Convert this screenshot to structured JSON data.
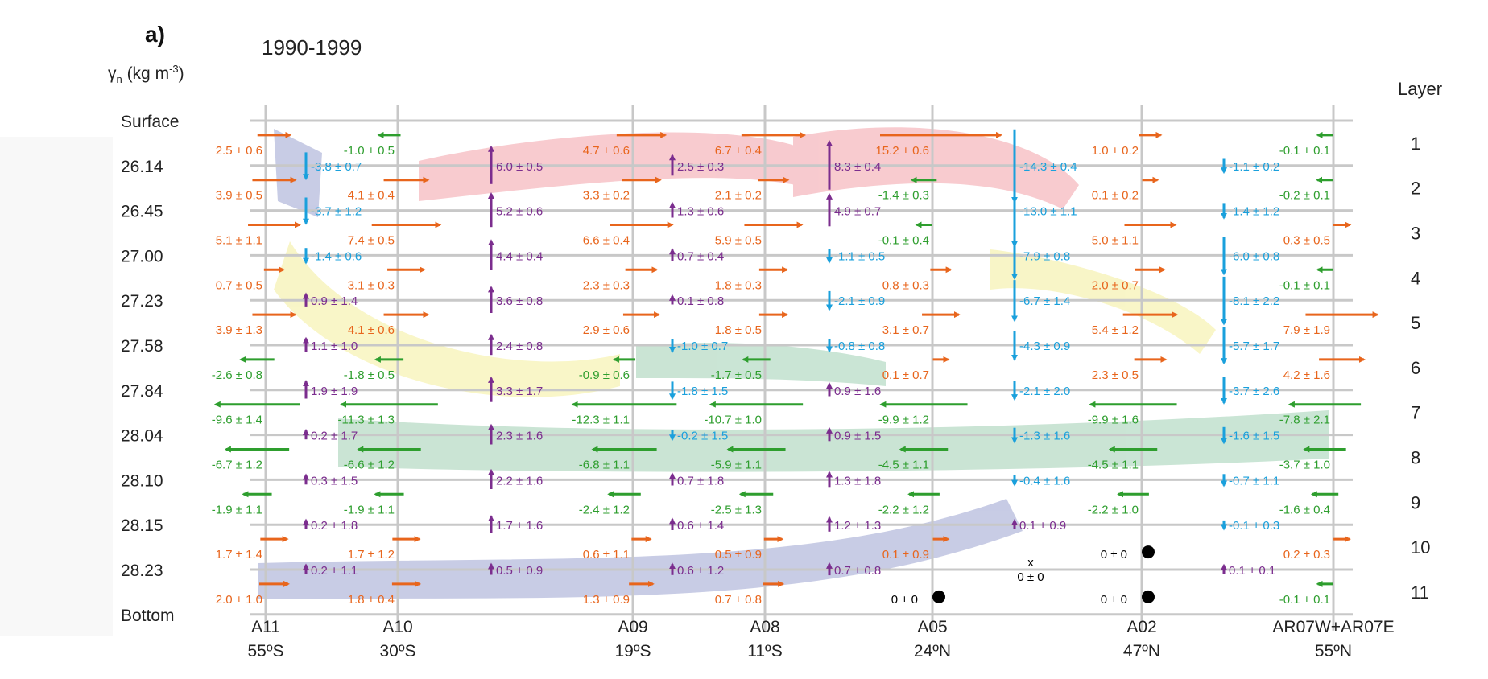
{
  "panel_label": "a)",
  "period": "1990-1999",
  "y_axis_label": "γ",
  "y_axis_label_sub": "n",
  "y_axis_unit": " (kg m",
  "y_axis_unit_sup": "-3",
  "y_axis_unit_close": ")",
  "layer_header": "Layer",
  "density_levels": [
    "Surface",
    "26.14",
    "26.45",
    "27.00",
    "27.23",
    "27.58",
    "27.84",
    "28.04",
    "28.10",
    "28.15",
    "28.23",
    "Bottom"
  ],
  "layers": [
    "1",
    "2",
    "3",
    "4",
    "5",
    "6",
    "7",
    "8",
    "9",
    "10",
    "11"
  ],
  "sections": [
    {
      "name": "A11",
      "lat": "55ºS"
    },
    {
      "name": "A10",
      "lat": "30ºS"
    },
    {
      "name": "A09",
      "lat": "19ºS"
    },
    {
      "name": "A08",
      "lat": "11ºS"
    },
    {
      "name": "A05",
      "lat": "24ºN"
    },
    {
      "name": "A02",
      "lat": "47ºN"
    },
    {
      "name": "AR07W+AR07E",
      "lat": "55ºN"
    }
  ],
  "colors": {
    "northward": "#e8651c",
    "southward": "#2e9e2e",
    "upwelling": "#7b2d8e",
    "downwelling": "#1aa0dc",
    "zero": "#000000",
    "gridline": "#c8c8c8",
    "band_red": "#f2a0a8",
    "band_yellow": "#f4ee9a",
    "band_green": "#9fcfb2",
    "band_blue": "#9aa2d0"
  },
  "horizontal_transports": [
    {
      "sec": 0,
      "layer": 1,
      "text": "2.5 ± 0.6",
      "dir": "north"
    },
    {
      "sec": 0,
      "layer": 2,
      "text": "3.9 ± 0.5",
      "dir": "north"
    },
    {
      "sec": 0,
      "layer": 3,
      "text": "5.1 ± 1.1",
      "dir": "north"
    },
    {
      "sec": 0,
      "layer": 4,
      "text": "0.7 ± 0.5",
      "dir": "north"
    },
    {
      "sec": 0,
      "layer": 5,
      "text": "3.9 ± 1.3",
      "dir": "north"
    },
    {
      "sec": 0,
      "layer": 6,
      "text": "-2.6 ± 0.8",
      "dir": "south"
    },
    {
      "sec": 0,
      "layer": 7,
      "text": "-9.6 ± 1.4",
      "dir": "south"
    },
    {
      "sec": 0,
      "layer": 8,
      "text": "-6.7 ± 1.2",
      "dir": "south"
    },
    {
      "sec": 0,
      "layer": 9,
      "text": "-1.9 ± 1.1",
      "dir": "south"
    },
    {
      "sec": 0,
      "layer": 10,
      "text": "1.7 ± 1.4",
      "dir": "north"
    },
    {
      "sec": 0,
      "layer": 11,
      "text": "2.0 ± 1.0",
      "dir": "north"
    },
    {
      "sec": 1,
      "layer": 1,
      "text": "-1.0 ± 0.5",
      "dir": "south"
    },
    {
      "sec": 1,
      "layer": 2,
      "text": "4.1 ± 0.4",
      "dir": "north"
    },
    {
      "sec": 1,
      "layer": 3,
      "text": "7.4 ± 0.5",
      "dir": "north"
    },
    {
      "sec": 1,
      "layer": 4,
      "text": "3.1 ± 0.3",
      "dir": "north"
    },
    {
      "sec": 1,
      "layer": 5,
      "text": "4.1 ± 0.6",
      "dir": "north"
    },
    {
      "sec": 1,
      "layer": 6,
      "text": "-1.8 ± 0.5",
      "dir": "south"
    },
    {
      "sec": 1,
      "layer": 7,
      "text": "-11.3 ± 1.3",
      "dir": "south"
    },
    {
      "sec": 1,
      "layer": 8,
      "text": "-6.6 ± 1.2",
      "dir": "south"
    },
    {
      "sec": 1,
      "layer": 9,
      "text": "-1.9 ± 1.1",
      "dir": "south"
    },
    {
      "sec": 1,
      "layer": 10,
      "text": "1.7 ± 1.2",
      "dir": "north"
    },
    {
      "sec": 1,
      "layer": 11,
      "text": "1.8 ± 0.4",
      "dir": "north"
    },
    {
      "sec": 2,
      "layer": 1,
      "text": "4.7 ± 0.6",
      "dir": "north"
    },
    {
      "sec": 2,
      "layer": 2,
      "text": "3.3 ± 0.2",
      "dir": "north"
    },
    {
      "sec": 2,
      "layer": 3,
      "text": "6.6 ± 0.4",
      "dir": "north"
    },
    {
      "sec": 2,
      "layer": 4,
      "text": "2.3 ± 0.3",
      "dir": "north"
    },
    {
      "sec": 2,
      "layer": 5,
      "text": "2.9 ± 0.6",
      "dir": "north"
    },
    {
      "sec": 2,
      "layer": 6,
      "text": "-0.9 ± 0.6",
      "dir": "south"
    },
    {
      "sec": 2,
      "layer": 7,
      "text": "-12.3 ± 1.1",
      "dir": "south"
    },
    {
      "sec": 2,
      "layer": 8,
      "text": "-6.8 ± 1.1",
      "dir": "south"
    },
    {
      "sec": 2,
      "layer": 9,
      "text": "-2.4 ± 1.2",
      "dir": "south"
    },
    {
      "sec": 2,
      "layer": 10,
      "text": "0.6 ± 1.1",
      "dir": "north"
    },
    {
      "sec": 2,
      "layer": 11,
      "text": "1.3 ± 0.9",
      "dir": "north"
    },
    {
      "sec": 3,
      "layer": 1,
      "text": "6.7 ± 0.4",
      "dir": "north"
    },
    {
      "sec": 3,
      "layer": 2,
      "text": "2.1 ± 0.2",
      "dir": "north"
    },
    {
      "sec": 3,
      "layer": 3,
      "text": "5.9 ± 0.5",
      "dir": "north"
    },
    {
      "sec": 3,
      "layer": 4,
      "text": "1.8 ± 0.3",
      "dir": "north"
    },
    {
      "sec": 3,
      "layer": 5,
      "text": "1.8 ± 0.5",
      "dir": "north"
    },
    {
      "sec": 3,
      "layer": 6,
      "text": "-1.7 ± 0.5",
      "dir": "south"
    },
    {
      "sec": 3,
      "layer": 7,
      "text": "-10.7 ± 1.0",
      "dir": "south"
    },
    {
      "sec": 3,
      "layer": 8,
      "text": "-5.9 ± 1.1",
      "dir": "south"
    },
    {
      "sec": 3,
      "layer": 9,
      "text": "-2.5 ± 1.3",
      "dir": "south"
    },
    {
      "sec": 3,
      "layer": 10,
      "text": "0.5 ± 0.9",
      "dir": "north"
    },
    {
      "sec": 3,
      "layer": 11,
      "text": "0.7 ± 0.8",
      "dir": "north"
    },
    {
      "sec": 4,
      "layer": 1,
      "text": "15.2 ± 0.6",
      "dir": "north"
    },
    {
      "sec": 4,
      "layer": 2,
      "text": "-1.4 ± 0.3",
      "dir": "south"
    },
    {
      "sec": 4,
      "layer": 3,
      "text": "-0.1 ± 0.4",
      "dir": "south"
    },
    {
      "sec": 4,
      "layer": 4,
      "text": "0.8 ± 0.3",
      "dir": "north"
    },
    {
      "sec": 4,
      "layer": 5,
      "text": "3.1 ± 0.7",
      "dir": "north"
    },
    {
      "sec": 4,
      "layer": 6,
      "text": "0.1 ± 0.7",
      "dir": "north"
    },
    {
      "sec": 4,
      "layer": 7,
      "text": "-9.9 ± 1.2",
      "dir": "south"
    },
    {
      "sec": 4,
      "layer": 8,
      "text": "-4.5 ± 1.1",
      "dir": "south"
    },
    {
      "sec": 4,
      "layer": 9,
      "text": "-2.2 ± 1.2",
      "dir": "south"
    },
    {
      "sec": 4,
      "layer": 10,
      "text": "0.1 ± 0.9",
      "dir": "north"
    },
    {
      "sec": 4,
      "layer": 11,
      "text": "0 ± 0",
      "dir": "zero"
    },
    {
      "sec": 5,
      "layer": 1,
      "text": "1.0 ± 0.2",
      "dir": "north"
    },
    {
      "sec": 5,
      "layer": 2,
      "text": "0.1 ± 0.2",
      "dir": "north"
    },
    {
      "sec": 5,
      "layer": 3,
      "text": "5.0 ± 1.1",
      "dir": "north"
    },
    {
      "sec": 5,
      "layer": 4,
      "text": "2.0 ± 0.7",
      "dir": "north"
    },
    {
      "sec": 5,
      "layer": 5,
      "text": "5.4 ± 1.2",
      "dir": "north"
    },
    {
      "sec": 5,
      "layer": 6,
      "text": "2.3 ± 0.5",
      "dir": "north"
    },
    {
      "sec": 5,
      "layer": 7,
      "text": "-9.9 ± 1.6",
      "dir": "south"
    },
    {
      "sec": 5,
      "layer": 8,
      "text": "-4.5 ± 1.1",
      "dir": "south"
    },
    {
      "sec": 5,
      "layer": 9,
      "text": "-2.2 ± 1.0",
      "dir": "south"
    },
    {
      "sec": 5,
      "layer": 10,
      "text": "0 ± 0",
      "dir": "zero"
    },
    {
      "sec": 5,
      "layer": 11,
      "text": "0 ± 0",
      "dir": "zero"
    },
    {
      "sec": 6,
      "layer": 1,
      "text": "-0.1 ± 0.1",
      "dir": "south"
    },
    {
      "sec": 6,
      "layer": 2,
      "text": "-0.2 ± 0.1",
      "dir": "south"
    },
    {
      "sec": 6,
      "layer": 3,
      "text": "0.3 ± 0.5",
      "dir": "north"
    },
    {
      "sec": 6,
      "layer": 4,
      "text": "-0.1 ± 0.1",
      "dir": "south"
    },
    {
      "sec": 6,
      "layer": 5,
      "text": "7.9 ± 1.9",
      "dir": "north"
    },
    {
      "sec": 6,
      "layer": 6,
      "text": "4.2 ± 1.6",
      "dir": "north"
    },
    {
      "sec": 6,
      "layer": 7,
      "text": "-7.8 ± 2.1",
      "dir": "south"
    },
    {
      "sec": 6,
      "layer": 8,
      "text": "-3.7 ± 1.0",
      "dir": "south"
    },
    {
      "sec": 6,
      "layer": 9,
      "text": "-1.6 ± 0.4",
      "dir": "south"
    },
    {
      "sec": 6,
      "layer": 10,
      "text": "0.2 ± 0.3",
      "dir": "north"
    },
    {
      "sec": 6,
      "layer": 11,
      "text": "-0.1 ± 0.1",
      "dir": "south"
    }
  ],
  "vertical_transports": [
    {
      "box": 0,
      "iface": 1,
      "text": "-3.8 ± 0.7",
      "dir": "down"
    },
    {
      "box": 0,
      "iface": 2,
      "text": "-3.7 ± 1.2",
      "dir": "down"
    },
    {
      "box": 0,
      "iface": 3,
      "text": "-1.4 ± 0.6",
      "dir": "down"
    },
    {
      "box": 0,
      "iface": 4,
      "text": "0.9 ± 1.4",
      "dir": "up"
    },
    {
      "box": 0,
      "iface": 5,
      "text": "1.1 ± 1.0",
      "dir": "up"
    },
    {
      "box": 0,
      "iface": 6,
      "text": "1.9 ± 1.9",
      "dir": "up"
    },
    {
      "box": 0,
      "iface": 7,
      "text": "0.2 ± 1.7",
      "dir": "up"
    },
    {
      "box": 0,
      "iface": 8,
      "text": "0.3 ± 1.5",
      "dir": "up"
    },
    {
      "box": 0,
      "iface": 9,
      "text": "0.2 ± 1.8",
      "dir": "up"
    },
    {
      "box": 0,
      "iface": 10,
      "text": "0.2 ± 1.1",
      "dir": "up"
    },
    {
      "box": 1,
      "iface": 1,
      "text": "6.0 ± 0.5",
      "dir": "up"
    },
    {
      "box": 1,
      "iface": 2,
      "text": "5.2 ± 0.6",
      "dir": "up"
    },
    {
      "box": 1,
      "iface": 3,
      "text": "4.4 ± 0.4",
      "dir": "up"
    },
    {
      "box": 1,
      "iface": 4,
      "text": "3.6 ± 0.8",
      "dir": "up"
    },
    {
      "box": 1,
      "iface": 5,
      "text": "2.4 ± 0.8",
      "dir": "up"
    },
    {
      "box": 1,
      "iface": 6,
      "text": "3.3 ± 1.7",
      "dir": "up"
    },
    {
      "box": 1,
      "iface": 7,
      "text": "2.3 ± 1.6",
      "dir": "up"
    },
    {
      "box": 1,
      "iface": 8,
      "text": "2.2 ± 1.6",
      "dir": "up"
    },
    {
      "box": 1,
      "iface": 9,
      "text": "1.7 ± 1.6",
      "dir": "up"
    },
    {
      "box": 1,
      "iface": 10,
      "text": "0.5 ± 0.9",
      "dir": "up"
    },
    {
      "box": 2,
      "iface": 1,
      "text": "2.5 ± 0.3",
      "dir": "up"
    },
    {
      "box": 2,
      "iface": 2,
      "text": "1.3 ± 0.6",
      "dir": "up"
    },
    {
      "box": 2,
      "iface": 3,
      "text": "0.7 ± 0.4",
      "dir": "up"
    },
    {
      "box": 2,
      "iface": 4,
      "text": "0.1 ± 0.8",
      "dir": "up"
    },
    {
      "box": 2,
      "iface": 5,
      "text": "-1.0 ± 0.7",
      "dir": "down"
    },
    {
      "box": 2,
      "iface": 6,
      "text": "-1.8 ± 1.5",
      "dir": "down"
    },
    {
      "box": 2,
      "iface": 7,
      "text": "-0.2 ± 1.5",
      "dir": "down"
    },
    {
      "box": 2,
      "iface": 8,
      "text": "0.7 ± 1.8",
      "dir": "up"
    },
    {
      "box": 2,
      "iface": 9,
      "text": "0.6 ± 1.4",
      "dir": "up"
    },
    {
      "box": 2,
      "iface": 10,
      "text": "0.6 ± 1.2",
      "dir": "up"
    },
    {
      "box": 3,
      "iface": 1,
      "text": "8.3 ± 0.4",
      "dir": "up"
    },
    {
      "box": 3,
      "iface": 2,
      "text": "4.9 ± 0.7",
      "dir": "up"
    },
    {
      "box": 3,
      "iface": 3,
      "text": "-1.1 ± 0.5",
      "dir": "down"
    },
    {
      "box": 3,
      "iface": 4,
      "text": "-2.1 ± 0.9",
      "dir": "down"
    },
    {
      "box": 3,
      "iface": 5,
      "text": "-0.8 ± 0.8",
      "dir": "down"
    },
    {
      "box": 3,
      "iface": 6,
      "text": "0.9 ± 1.6",
      "dir": "up"
    },
    {
      "box": 3,
      "iface": 7,
      "text": "0.9 ± 1.5",
      "dir": "up"
    },
    {
      "box": 3,
      "iface": 8,
      "text": "1.3 ± 1.8",
      "dir": "up"
    },
    {
      "box": 3,
      "iface": 9,
      "text": "1.2 ± 1.3",
      "dir": "up"
    },
    {
      "box": 3,
      "iface": 10,
      "text": "0.7 ± 0.8",
      "dir": "up"
    },
    {
      "box": 4,
      "iface": 1,
      "text": "-14.3 ± 0.4",
      "dir": "down"
    },
    {
      "box": 4,
      "iface": 2,
      "text": "-13.0 ± 1.1",
      "dir": "down"
    },
    {
      "box": 4,
      "iface": 3,
      "text": "-7.9 ± 0.8",
      "dir": "down"
    },
    {
      "box": 4,
      "iface": 4,
      "text": "-6.7 ± 1.4",
      "dir": "down"
    },
    {
      "box": 4,
      "iface": 5,
      "text": "-4.3 ± 0.9",
      "dir": "down"
    },
    {
      "box": 4,
      "iface": 6,
      "text": "-2.1 ± 2.0",
      "dir": "down"
    },
    {
      "box": 4,
      "iface": 7,
      "text": "-1.3 ± 1.6",
      "dir": "down"
    },
    {
      "box": 4,
      "iface": 8,
      "text": "-0.4 ± 1.6",
      "dir": "down"
    },
    {
      "box": 4,
      "iface": 9,
      "text": "0.1 ± 0.9",
      "dir": "up"
    },
    {
      "box": 4,
      "iface": 10,
      "text": "0 ± 0",
      "dir": "zero"
    },
    {
      "box": 5,
      "iface": 1,
      "text": "-1.1 ± 0.2",
      "dir": "down"
    },
    {
      "box": 5,
      "iface": 2,
      "text": "-1.4 ± 1.2",
      "dir": "down"
    },
    {
      "box": 5,
      "iface": 3,
      "text": "-6.0 ± 0.8",
      "dir": "down"
    },
    {
      "box": 5,
      "iface": 4,
      "text": "-8.1 ± 2.2",
      "dir": "down"
    },
    {
      "box": 5,
      "iface": 5,
      "text": "-5.7 ± 1.7",
      "dir": "down"
    },
    {
      "box": 5,
      "iface": 6,
      "text": "-3.7 ± 2.6",
      "dir": "down"
    },
    {
      "box": 5,
      "iface": 7,
      "text": "-1.6 ± 1.5",
      "dir": "down"
    },
    {
      "box": 5,
      "iface": 8,
      "text": "-0.7 ± 1.1",
      "dir": "down"
    },
    {
      "box": 5,
      "iface": 9,
      "text": "-0.1 ± 0.3",
      "dir": "down"
    },
    {
      "box": 5,
      "iface": 10,
      "text": "0.1 ± 0.1",
      "dir": "up"
    }
  ]
}
